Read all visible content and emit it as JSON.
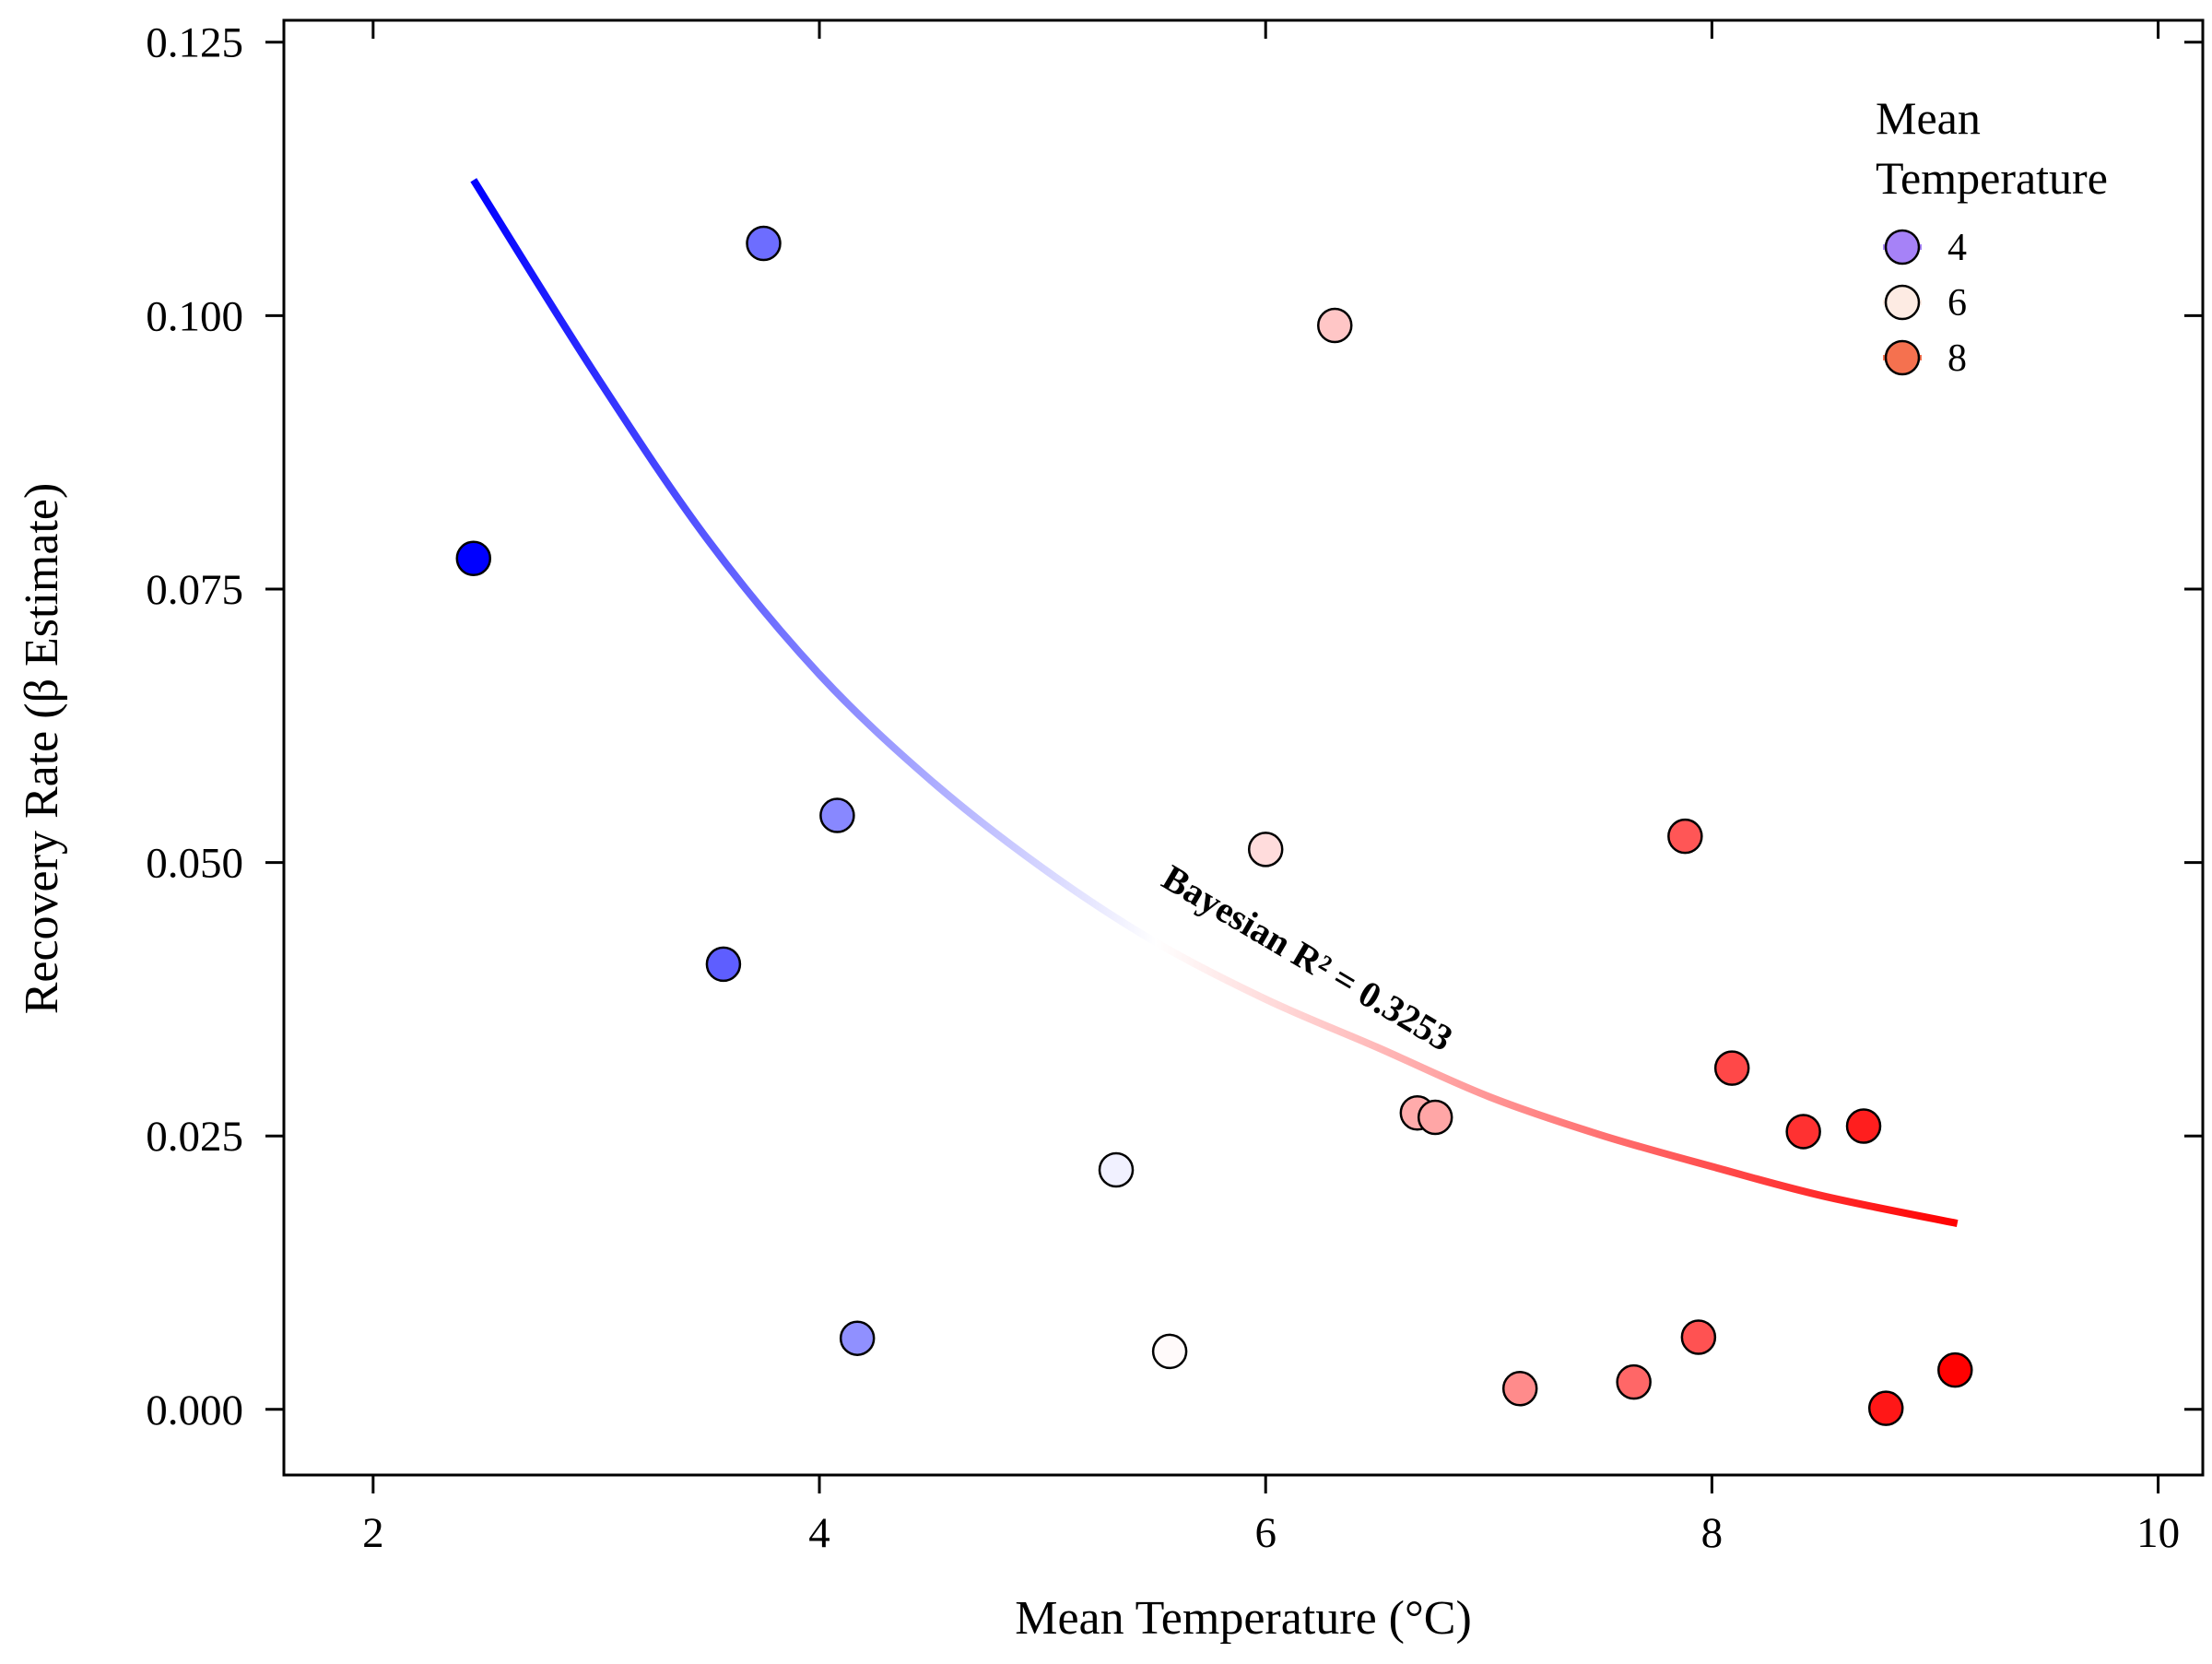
{
  "chart_data": {
    "type": "scatter",
    "xlabel": "Mean Temperature (°C)",
    "ylabel": "Recovery Rate (β Estimate)",
    "xlim": [
      1.6,
      10.2
    ],
    "ylim": [
      -0.006,
      0.127
    ],
    "x_ticks": [
      2,
      4,
      6,
      8,
      10
    ],
    "x_tick_labels": [
      "2",
      "4",
      "6",
      "8",
      "10"
    ],
    "y_ticks": [
      0.0,
      0.025,
      0.05,
      0.075,
      0.1,
      0.125
    ],
    "y_tick_labels": [
      "0.000",
      "0.025",
      "0.050",
      "0.075",
      "0.100",
      "0.125"
    ],
    "grid": false,
    "color_scale": {
      "min": 2.45,
      "mid": 5.5,
      "max": 9.1,
      "low_color": "#0000ff",
      "mid_color": "#ffffff",
      "high_color": "#ff0000"
    },
    "points": [
      {
        "x": 2.45,
        "y": 0.0778
      },
      {
        "x": 3.57,
        "y": 0.0407
      },
      {
        "x": 3.75,
        "y": 0.1066
      },
      {
        "x": 4.08,
        "y": 0.0543
      },
      {
        "x": 4.17,
        "y": 0.0065
      },
      {
        "x": 5.33,
        "y": 0.0219
      },
      {
        "x": 5.57,
        "y": 0.0053
      },
      {
        "x": 6.0,
        "y": 0.0512
      },
      {
        "x": 6.31,
        "y": 0.0991
      },
      {
        "x": 6.68,
        "y": 0.0271
      },
      {
        "x": 6.76,
        "y": 0.0267
      },
      {
        "x": 7.14,
        "y": 0.0019
      },
      {
        "x": 7.65,
        "y": 0.0025
      },
      {
        "x": 7.88,
        "y": 0.0524
      },
      {
        "x": 7.94,
        "y": 0.0066
      },
      {
        "x": 8.09,
        "y": 0.0312
      },
      {
        "x": 8.41,
        "y": 0.0254
      },
      {
        "x": 8.68,
        "y": 0.0259
      },
      {
        "x": 8.78,
        "y": 0.0001
      },
      {
        "x": 9.09,
        "y": 0.0036
      }
    ],
    "fit": {
      "type": "curve",
      "x_range": [
        2.45,
        9.1
      ],
      "points": [
        {
          "x": 2.45,
          "y": 0.1124
        },
        {
          "x": 3.0,
          "y": 0.0945
        },
        {
          "x": 3.5,
          "y": 0.0795
        },
        {
          "x": 4.0,
          "y": 0.0672
        },
        {
          "x": 4.5,
          "y": 0.0575
        },
        {
          "x": 5.0,
          "y": 0.0495
        },
        {
          "x": 5.5,
          "y": 0.0428
        },
        {
          "x": 6.0,
          "y": 0.0375
        },
        {
          "x": 6.5,
          "y": 0.0331
        },
        {
          "x": 7.0,
          "y": 0.0286
        },
        {
          "x": 7.5,
          "y": 0.0251
        },
        {
          "x": 8.0,
          "y": 0.0222
        },
        {
          "x": 8.5,
          "y": 0.0195
        },
        {
          "x": 9.1,
          "y": 0.017
        }
      ]
    },
    "annotation": {
      "text": "Bayesian R² = 0.3253",
      "x": 6.16,
      "y": 0.0403,
      "angle": 30.5
    },
    "legend": {
      "title_lines": [
        "Mean",
        "Temperature"
      ],
      "placement": "top-right",
      "entries": [
        {
          "label": "4",
          "value": 4,
          "color": "#a682f7"
        },
        {
          "label": "6",
          "value": 6,
          "color": "#fdebe3"
        },
        {
          "label": "8",
          "value": 8,
          "color": "#f5714f"
        }
      ]
    }
  }
}
